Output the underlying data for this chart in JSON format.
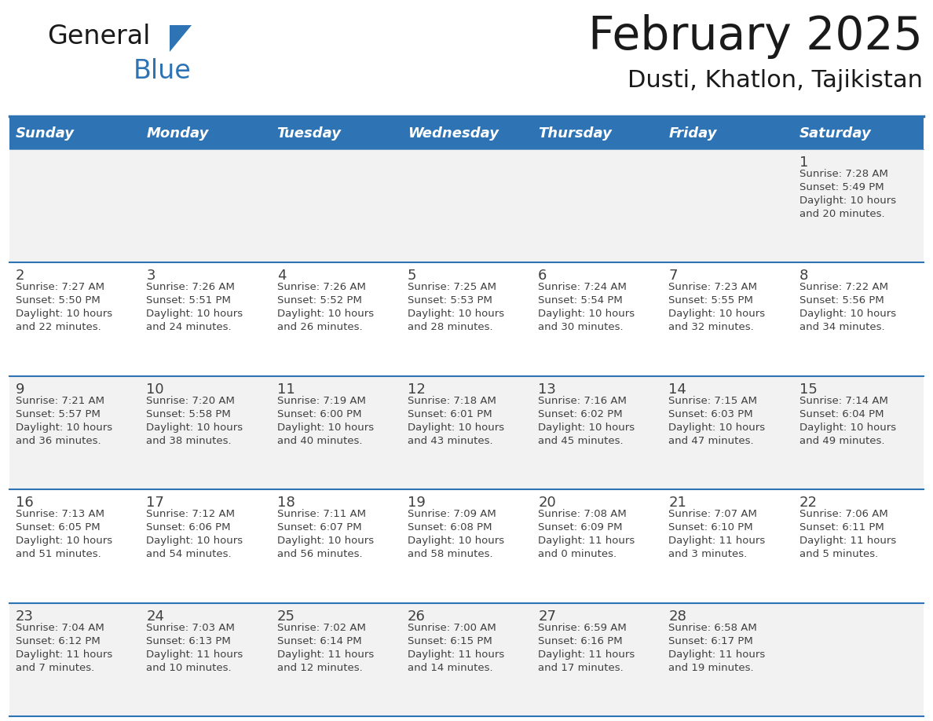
{
  "title": "February 2025",
  "subtitle": "Dusti, Khatlon, Tajikistan",
  "days_of_week": [
    "Sunday",
    "Monday",
    "Tuesday",
    "Wednesday",
    "Thursday",
    "Friday",
    "Saturday"
  ],
  "header_bg": "#2E74B5",
  "header_text": "#FFFFFF",
  "cell_bg_white": "#FFFFFF",
  "cell_bg_gray": "#F2F2F2",
  "separator_color": "#2E74B5",
  "day_number_color": "#404040",
  "info_text_color": "#404040",
  "title_color": "#1A1A1A",
  "calendar_data": [
    {
      "day": 1,
      "col": 6,
      "row": 0,
      "sunrise": "7:28 AM",
      "sunset": "5:49 PM",
      "daylight_h": "10 hours",
      "daylight_m": "and 20 minutes."
    },
    {
      "day": 2,
      "col": 0,
      "row": 1,
      "sunrise": "7:27 AM",
      "sunset": "5:50 PM",
      "daylight_h": "10 hours",
      "daylight_m": "and 22 minutes."
    },
    {
      "day": 3,
      "col": 1,
      "row": 1,
      "sunrise": "7:26 AM",
      "sunset": "5:51 PM",
      "daylight_h": "10 hours",
      "daylight_m": "and 24 minutes."
    },
    {
      "day": 4,
      "col": 2,
      "row": 1,
      "sunrise": "7:26 AM",
      "sunset": "5:52 PM",
      "daylight_h": "10 hours",
      "daylight_m": "and 26 minutes."
    },
    {
      "day": 5,
      "col": 3,
      "row": 1,
      "sunrise": "7:25 AM",
      "sunset": "5:53 PM",
      "daylight_h": "10 hours",
      "daylight_m": "and 28 minutes."
    },
    {
      "day": 6,
      "col": 4,
      "row": 1,
      "sunrise": "7:24 AM",
      "sunset": "5:54 PM",
      "daylight_h": "10 hours",
      "daylight_m": "and 30 minutes."
    },
    {
      "day": 7,
      "col": 5,
      "row": 1,
      "sunrise": "7:23 AM",
      "sunset": "5:55 PM",
      "daylight_h": "10 hours",
      "daylight_m": "and 32 minutes."
    },
    {
      "day": 8,
      "col": 6,
      "row": 1,
      "sunrise": "7:22 AM",
      "sunset": "5:56 PM",
      "daylight_h": "10 hours",
      "daylight_m": "and 34 minutes."
    },
    {
      "day": 9,
      "col": 0,
      "row": 2,
      "sunrise": "7:21 AM",
      "sunset": "5:57 PM",
      "daylight_h": "10 hours",
      "daylight_m": "and 36 minutes."
    },
    {
      "day": 10,
      "col": 1,
      "row": 2,
      "sunrise": "7:20 AM",
      "sunset": "5:58 PM",
      "daylight_h": "10 hours",
      "daylight_m": "and 38 minutes."
    },
    {
      "day": 11,
      "col": 2,
      "row": 2,
      "sunrise": "7:19 AM",
      "sunset": "6:00 PM",
      "daylight_h": "10 hours",
      "daylight_m": "and 40 minutes."
    },
    {
      "day": 12,
      "col": 3,
      "row": 2,
      "sunrise": "7:18 AM",
      "sunset": "6:01 PM",
      "daylight_h": "10 hours",
      "daylight_m": "and 43 minutes."
    },
    {
      "day": 13,
      "col": 4,
      "row": 2,
      "sunrise": "7:16 AM",
      "sunset": "6:02 PM",
      "daylight_h": "10 hours",
      "daylight_m": "and 45 minutes."
    },
    {
      "day": 14,
      "col": 5,
      "row": 2,
      "sunrise": "7:15 AM",
      "sunset": "6:03 PM",
      "daylight_h": "10 hours",
      "daylight_m": "and 47 minutes."
    },
    {
      "day": 15,
      "col": 6,
      "row": 2,
      "sunrise": "7:14 AM",
      "sunset": "6:04 PM",
      "daylight_h": "10 hours",
      "daylight_m": "and 49 minutes."
    },
    {
      "day": 16,
      "col": 0,
      "row": 3,
      "sunrise": "7:13 AM",
      "sunset": "6:05 PM",
      "daylight_h": "10 hours",
      "daylight_m": "and 51 minutes."
    },
    {
      "day": 17,
      "col": 1,
      "row": 3,
      "sunrise": "7:12 AM",
      "sunset": "6:06 PM",
      "daylight_h": "10 hours",
      "daylight_m": "and 54 minutes."
    },
    {
      "day": 18,
      "col": 2,
      "row": 3,
      "sunrise": "7:11 AM",
      "sunset": "6:07 PM",
      "daylight_h": "10 hours",
      "daylight_m": "and 56 minutes."
    },
    {
      "day": 19,
      "col": 3,
      "row": 3,
      "sunrise": "7:09 AM",
      "sunset": "6:08 PM",
      "daylight_h": "10 hours",
      "daylight_m": "and 58 minutes."
    },
    {
      "day": 20,
      "col": 4,
      "row": 3,
      "sunrise": "7:08 AM",
      "sunset": "6:09 PM",
      "daylight_h": "11 hours",
      "daylight_m": "and 0 minutes."
    },
    {
      "day": 21,
      "col": 5,
      "row": 3,
      "sunrise": "7:07 AM",
      "sunset": "6:10 PM",
      "daylight_h": "11 hours",
      "daylight_m": "and 3 minutes."
    },
    {
      "day": 22,
      "col": 6,
      "row": 3,
      "sunrise": "7:06 AM",
      "sunset": "6:11 PM",
      "daylight_h": "11 hours",
      "daylight_m": "and 5 minutes."
    },
    {
      "day": 23,
      "col": 0,
      "row": 4,
      "sunrise": "7:04 AM",
      "sunset": "6:12 PM",
      "daylight_h": "11 hours",
      "daylight_m": "and 7 minutes."
    },
    {
      "day": 24,
      "col": 1,
      "row": 4,
      "sunrise": "7:03 AM",
      "sunset": "6:13 PM",
      "daylight_h": "11 hours",
      "daylight_m": "and 10 minutes."
    },
    {
      "day": 25,
      "col": 2,
      "row": 4,
      "sunrise": "7:02 AM",
      "sunset": "6:14 PM",
      "daylight_h": "11 hours",
      "daylight_m": "and 12 minutes."
    },
    {
      "day": 26,
      "col": 3,
      "row": 4,
      "sunrise": "7:00 AM",
      "sunset": "6:15 PM",
      "daylight_h": "11 hours",
      "daylight_m": "and 14 minutes."
    },
    {
      "day": 27,
      "col": 4,
      "row": 4,
      "sunrise": "6:59 AM",
      "sunset": "6:16 PM",
      "daylight_h": "11 hours",
      "daylight_m": "and 17 minutes."
    },
    {
      "day": 28,
      "col": 5,
      "row": 4,
      "sunrise": "6:58 AM",
      "sunset": "6:17 PM",
      "daylight_h": "11 hours",
      "daylight_m": "and 19 minutes."
    }
  ],
  "num_rows": 5,
  "num_cols": 7,
  "row_bg_colors": [
    "#F2F2F2",
    "#FFFFFF",
    "#F2F2F2",
    "#FFFFFF",
    "#F2F2F2"
  ]
}
